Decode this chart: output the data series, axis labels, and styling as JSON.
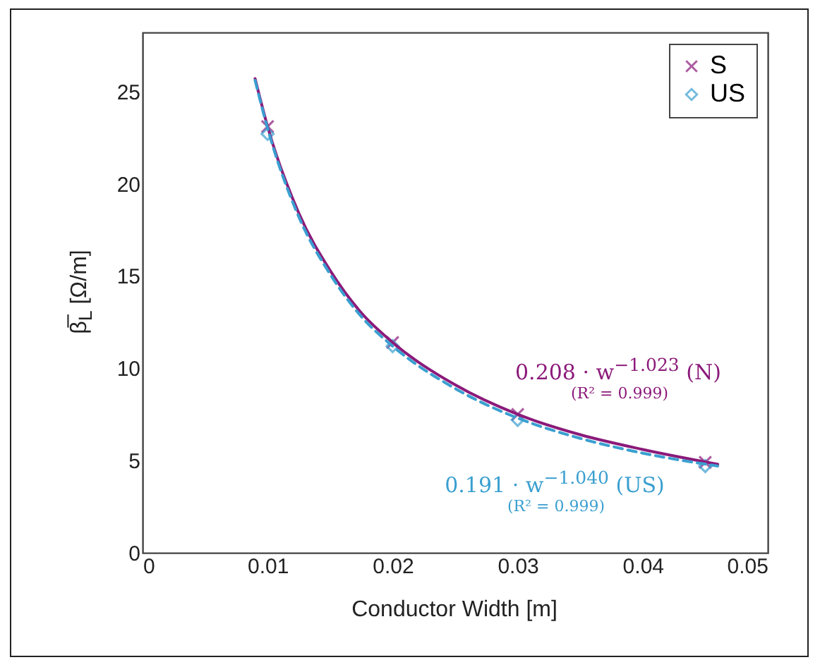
{
  "chart_data": {
    "type": "scatter",
    "xlabel": "Conductor Width [m]",
    "ylabel": "β̅$_{L}$ [Ω/m]",
    "xlim": [
      0,
      0.05
    ],
    "xticks": [
      0,
      0.01,
      0.02,
      0.03,
      0.04,
      0.05
    ],
    "ylim": [
      0,
      28.2
    ],
    "yticks": [
      0,
      5,
      10,
      15,
      20,
      25
    ],
    "legend": "top right",
    "grid": false,
    "x": [
      0.01,
      0.02,
      0.03,
      0.045
    ],
    "series": [
      {
        "name": "S",
        "color": "#8b1a7a",
        "marker": "cross",
        "values": [
          23.1,
          11.4,
          7.5,
          4.9
        ]
      },
      {
        "name": "US",
        "color": "#3a9fd0",
        "marker": "diamond",
        "values": [
          22.7,
          11.2,
          7.2,
          4.7
        ]
      },
      {
        "type": "line",
        "color": "#8b1a7a",
        "line_style": "solid",
        "marker": "none",
        "x": [
          0.009,
          0.01,
          0.0125,
          0.015,
          0.0175,
          0.02,
          0.025,
          0.03,
          0.035,
          0.04,
          0.046
        ],
        "values": [
          25.7,
          23.1,
          18.4,
          15.3,
          13.0,
          11.4,
          9.1,
          7.5,
          6.4,
          5.6,
          4.8
        ]
      },
      {
        "type": "line",
        "color": "#3a9fd0",
        "line_style": "dashed",
        "marker": "none",
        "x": [
          0.009,
          0.01,
          0.0125,
          0.015,
          0.0175,
          0.02,
          0.025,
          0.03,
          0.035,
          0.04,
          0.046
        ],
        "values": [
          25.6,
          23.0,
          18.2,
          15.1,
          12.8,
          11.2,
          8.9,
          7.3,
          6.2,
          5.4,
          4.7
        ]
      }
    ],
    "annotations": [
      "0.208 · w$^{−1.023}$ (N)",
      "(R² = 0.999)",
      "0.191 · w$^{−1.040}$ (US)",
      "(R² = 0.999)"
    ]
  }
}
